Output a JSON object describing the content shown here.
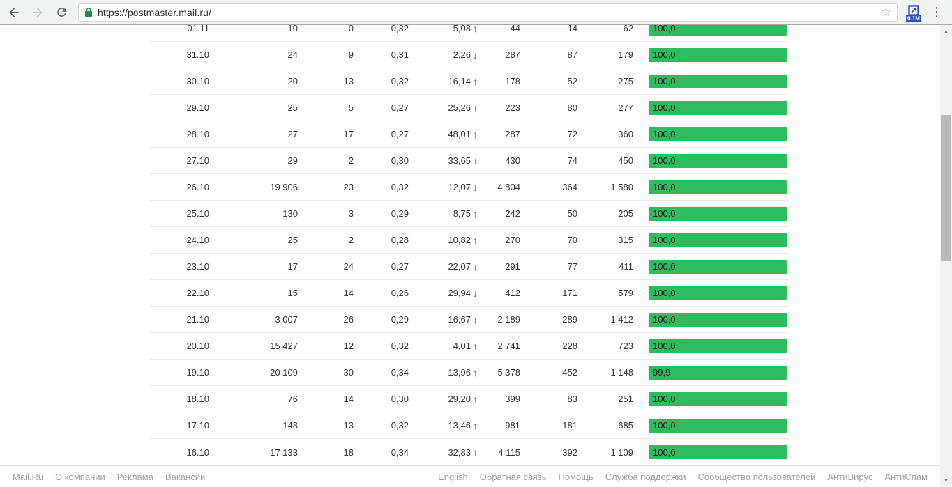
{
  "browser": {
    "url": "https://postmaster.mail.ru/",
    "extension_badge": "0.1M"
  },
  "icons": {
    "back": "back-arrow",
    "forward": "forward-arrow",
    "reload": "reload-circular-arrow",
    "lock": "https-padlock",
    "star": "☆",
    "extension": "liveinternet-counter",
    "menu": "⋮",
    "trend_up": "↑",
    "trend_down": "↓",
    "scrollbar_up": "▲",
    "scrollbar_down": "▼"
  },
  "colors": {
    "bar_green": "#2dbc5e",
    "trend_up_red": "#e45327",
    "trend_down_green": "#24a147",
    "lock_green": "#1e8e3e",
    "extension_blue": "#2b50c8"
  },
  "table": {
    "rows": [
      {
        "date": "01.11",
        "c2": "10",
        "c3": "0",
        "c4": "0,32",
        "c5": "5,08",
        "trend": "up",
        "c6": "44",
        "c7": "14",
        "c8": "62",
        "bar": "100,0"
      },
      {
        "date": "31.10",
        "c2": "24",
        "c3": "9",
        "c4": "0,31",
        "c5": "2,26",
        "trend": "down",
        "c6": "287",
        "c7": "87",
        "c8": "179",
        "bar": "100,0"
      },
      {
        "date": "30.10",
        "c2": "20",
        "c3": "13",
        "c4": "0,32",
        "c5": "16,14",
        "trend": "up",
        "c6": "178",
        "c7": "52",
        "c8": "275",
        "bar": "100,0"
      },
      {
        "date": "29.10",
        "c2": "25",
        "c3": "5",
        "c4": "0,27",
        "c5": "25,26",
        "trend": "up",
        "c6": "223",
        "c7": "80",
        "c8": "277",
        "bar": "100,0"
      },
      {
        "date": "28.10",
        "c2": "27",
        "c3": "17",
        "c4": "0,27",
        "c5": "48,01",
        "trend": "up",
        "c6": "287",
        "c7": "72",
        "c8": "360",
        "bar": "100,0"
      },
      {
        "date": "27.10",
        "c2": "29",
        "c3": "2",
        "c4": "0,30",
        "c5": "33,65",
        "trend": "up",
        "c6": "430",
        "c7": "74",
        "c8": "450",
        "bar": "100,0"
      },
      {
        "date": "26.10",
        "c2": "19 906",
        "c3": "23",
        "c4": "0,32",
        "c5": "12,07",
        "trend": "down",
        "c6": "4 804",
        "c7": "364",
        "c8": "1 580",
        "bar": "100,0"
      },
      {
        "date": "25.10",
        "c2": "130",
        "c3": "3",
        "c4": "0,29",
        "c5": "8,75",
        "trend": "up",
        "c6": "242",
        "c7": "50",
        "c8": "205",
        "bar": "100,0"
      },
      {
        "date": "24.10",
        "c2": "25",
        "c3": "2",
        "c4": "0,28",
        "c5": "10,82",
        "trend": "up",
        "c6": "270",
        "c7": "70",
        "c8": "315",
        "bar": "100,0"
      },
      {
        "date": "23.10",
        "c2": "17",
        "c3": "24",
        "c4": "0,27",
        "c5": "22,07",
        "trend": "down",
        "c6": "291",
        "c7": "77",
        "c8": "411",
        "bar": "100,0"
      },
      {
        "date": "22.10",
        "c2": "15",
        "c3": "14",
        "c4": "0,26",
        "c5": "29,94",
        "trend": "down",
        "c6": "412",
        "c7": "171",
        "c8": "579",
        "bar": "100,0"
      },
      {
        "date": "21.10",
        "c2": "3 007",
        "c3": "26",
        "c4": "0,29",
        "c5": "16,67",
        "trend": "down",
        "c6": "2 189",
        "c7": "289",
        "c8": "1 412",
        "bar": "100,0"
      },
      {
        "date": "20.10",
        "c2": "15 427",
        "c3": "12",
        "c4": "0,32",
        "c5": "4,01",
        "trend": "up",
        "c6": "2 741",
        "c7": "228",
        "c8": "723",
        "bar": "100,0"
      },
      {
        "date": "19.10",
        "c2": "20 109",
        "c3": "30",
        "c4": "0,34",
        "c5": "13,96",
        "trend": "up",
        "c6": "5 378",
        "c7": "452",
        "c8": "1 148",
        "bar": "99,9"
      },
      {
        "date": "18.10",
        "c2": "76",
        "c3": "14",
        "c4": "0,30",
        "c5": "29,20",
        "trend": "up",
        "c6": "399",
        "c7": "83",
        "c8": "251",
        "bar": "100,0"
      },
      {
        "date": "17.10",
        "c2": "148",
        "c3": "13",
        "c4": "0,32",
        "c5": "13,46",
        "trend": "up",
        "c6": "981",
        "c7": "181",
        "c8": "685",
        "bar": "100,0"
      },
      {
        "date": "16.10",
        "c2": "17 133",
        "c3": "18",
        "c4": "0,34",
        "c5": "32,83",
        "trend": "up",
        "c6": "4 115",
        "c7": "392",
        "c8": "1 109",
        "bar": "100,0"
      }
    ]
  },
  "footer": {
    "left_links": [
      "Mail.Ru",
      "О компании",
      "Реклама",
      "Вакансии"
    ],
    "right_links": [
      "English",
      "Обратная связь",
      "Помощь",
      "Служба поддержки",
      "Сообщество пользователей",
      "АнтиВирус",
      "АнтиСпам"
    ]
  }
}
